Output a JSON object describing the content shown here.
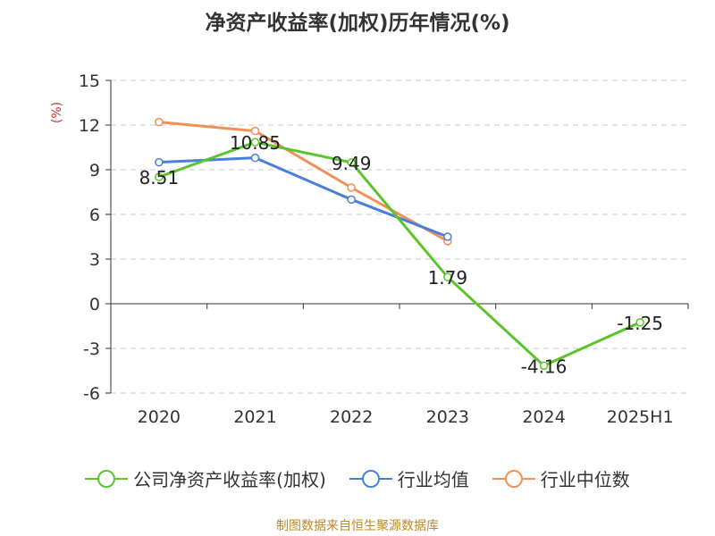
{
  "chart_data": {
    "type": "line",
    "title": "净资产收益率(加权)历年情况(%)",
    "ylabel": "(%)",
    "xlabel": "",
    "categories": [
      "2020",
      "2021",
      "2022",
      "2023",
      "2024",
      "2025H1"
    ],
    "ylim": [
      -6,
      15
    ],
    "yticks": [
      15,
      12,
      9,
      6,
      3,
      0,
      -3,
      -6
    ],
    "grid": true,
    "legend_position": "bottom",
    "series": [
      {
        "name": "公司净资产收益率(加权)",
        "color": "#5ac52a",
        "values": [
          8.51,
          10.85,
          9.49,
          1.79,
          -4.16,
          -1.25
        ],
        "data_labels": [
          "8.51",
          "10.85",
          "9.49",
          "1.79",
          "-4.16",
          "-1.25"
        ]
      },
      {
        "name": "行业均值",
        "color": "#4a7fd9",
        "values": [
          9.5,
          9.8,
          7.0,
          4.5,
          null,
          null
        ]
      },
      {
        "name": "行业中位数",
        "color": "#f28f57",
        "values": [
          12.2,
          11.6,
          7.8,
          4.2,
          null,
          null
        ]
      }
    ]
  },
  "source_note": "制图数据来自恒生聚源数据库"
}
